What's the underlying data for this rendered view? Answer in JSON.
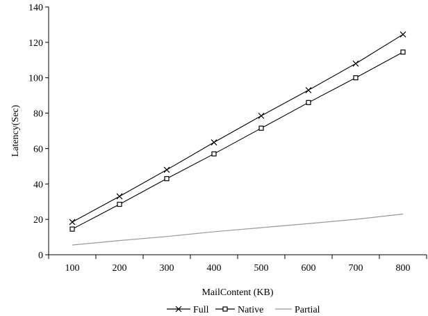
{
  "chart_data": {
    "type": "line",
    "title": "",
    "xlabel": "MailContent (KB)",
    "ylabel": "Latency(Sec)",
    "categories": [
      "100",
      "200",
      "300",
      "400",
      "500",
      "600",
      "700",
      "800"
    ],
    "ylim": [
      0,
      140
    ],
    "yticks": [
      0,
      20,
      40,
      60,
      80,
      100,
      120,
      140
    ],
    "grid": false,
    "legend_position": "bottom",
    "series": [
      {
        "name": "Full",
        "values": [
          18.5,
          33,
          48,
          63.5,
          78.5,
          93,
          108,
          124.5
        ],
        "marker": "x",
        "color": "#000000"
      },
      {
        "name": "Native",
        "values": [
          14.5,
          28.5,
          43,
          57,
          71.5,
          86,
          100,
          114.5
        ],
        "marker": "square",
        "color": "#000000"
      },
      {
        "name": "Partial",
        "values": [
          5.5,
          8,
          10.3,
          13,
          15.3,
          17.6,
          20,
          23
        ],
        "marker": "none",
        "color": "#999999"
      }
    ]
  }
}
